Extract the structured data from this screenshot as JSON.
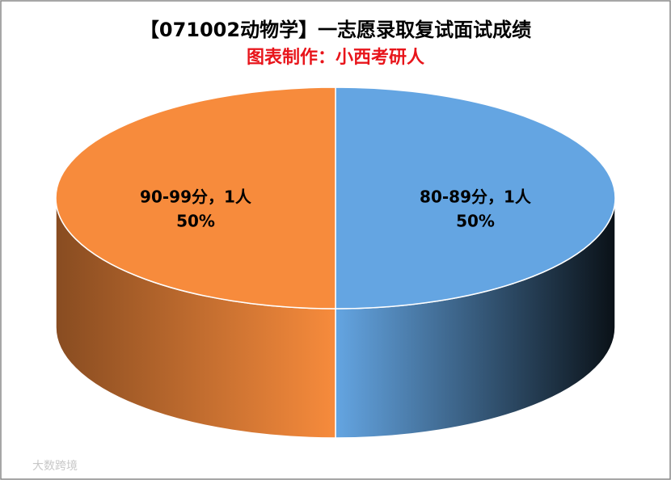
{
  "chart_data": {
    "type": "pie",
    "title": "【071002动物学】一志愿录取复试面试成绩",
    "subtitle": "图表制作：小西考研人",
    "categories": [
      "80-89分，1人",
      "90-99分，1人"
    ],
    "values": [
      50,
      50
    ],
    "value_labels": [
      "50%",
      "50%"
    ],
    "colors": [
      "#64a5e2",
      "#f78b3c"
    ],
    "watermark": "大数跨境"
  }
}
